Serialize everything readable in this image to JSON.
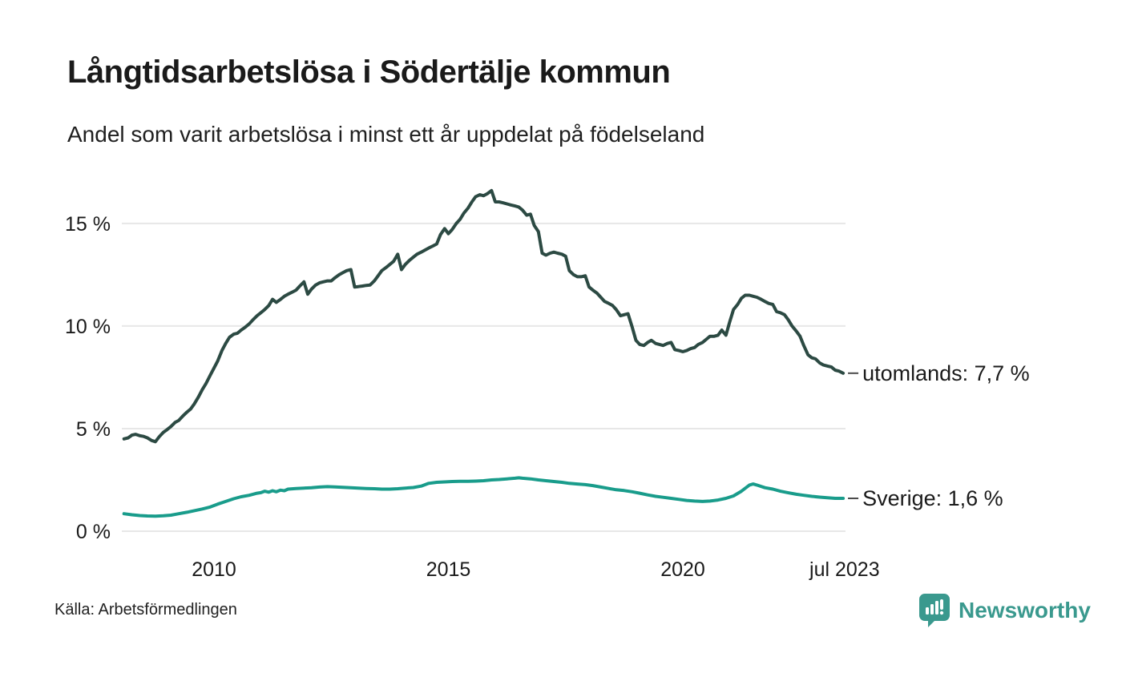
{
  "header": {
    "title": "Långtidsarbetslösa i Södertälje kommun",
    "subtitle": "Andel som varit arbetslösa i minst ett år uppdelat på födelseland"
  },
  "footer": {
    "source": "Källa: Arbetsförmedlingen",
    "brand": "Newsworthy"
  },
  "colors": {
    "utomlands_line": "#2c4a43",
    "sverige_line": "#199c8b",
    "gridline": "#e7e7e7",
    "text": "#1a1a1a",
    "leader_dash": "#4a4a4a",
    "brand_teal": "#3a998e"
  },
  "chart_data": {
    "type": "line",
    "title": "Långtidsarbetslösa i Södertälje kommun",
    "subtitle": "Andel som varit arbetslösa i minst ett år uppdelat på födelseland",
    "xlabel": "",
    "ylabel": "",
    "x_unit": "decimal_year",
    "y_unit": "percent",
    "ylim": [
      0,
      17.5
    ],
    "xlim": [
      2008.0,
      2023.6
    ],
    "grid": "horizontal",
    "legend_position": "line-end-labels",
    "y_ticks": [
      {
        "label": "0 %",
        "value": 0
      },
      {
        "label": "5 %",
        "value": 5
      },
      {
        "label": "10 %",
        "value": 10
      },
      {
        "label": "15 %",
        "value": 15
      }
    ],
    "x_ticks": [
      {
        "label": "2010",
        "value": 2010
      },
      {
        "label": "2015",
        "value": 2015
      },
      {
        "label": "2020",
        "value": 2020
      },
      {
        "label": "jul 2023",
        "value": 2023.45
      }
    ],
    "series": [
      {
        "name": "utomlands",
        "end_label": "utomlands: 7,7 %",
        "last_value_display": "7,7 %",
        "color": "#2c4a43",
        "points": [
          [
            2008.08,
            4.5
          ],
          [
            2008.17,
            4.55
          ],
          [
            2008.25,
            4.68
          ],
          [
            2008.33,
            4.72
          ],
          [
            2008.42,
            4.65
          ],
          [
            2008.5,
            4.62
          ],
          [
            2008.58,
            4.55
          ],
          [
            2008.67,
            4.42
          ],
          [
            2008.75,
            4.36
          ],
          [
            2008.83,
            4.6
          ],
          [
            2008.92,
            4.82
          ],
          [
            2009.0,
            4.95
          ],
          [
            2009.08,
            5.1
          ],
          [
            2009.17,
            5.3
          ],
          [
            2009.25,
            5.4
          ],
          [
            2009.33,
            5.6
          ],
          [
            2009.42,
            5.8
          ],
          [
            2009.5,
            5.95
          ],
          [
            2009.58,
            6.2
          ],
          [
            2009.67,
            6.55
          ],
          [
            2009.75,
            6.9
          ],
          [
            2009.83,
            7.2
          ],
          [
            2009.92,
            7.6
          ],
          [
            2010.0,
            7.95
          ],
          [
            2010.08,
            8.3
          ],
          [
            2010.17,
            8.8
          ],
          [
            2010.25,
            9.15
          ],
          [
            2010.33,
            9.45
          ],
          [
            2010.42,
            9.6
          ],
          [
            2010.5,
            9.65
          ],
          [
            2010.58,
            9.8
          ],
          [
            2010.67,
            9.95
          ],
          [
            2010.75,
            10.1
          ],
          [
            2010.83,
            10.3
          ],
          [
            2010.92,
            10.5
          ],
          [
            2011.0,
            10.65
          ],
          [
            2011.08,
            10.8
          ],
          [
            2011.17,
            11.0
          ],
          [
            2011.25,
            11.3
          ],
          [
            2011.33,
            11.15
          ],
          [
            2011.42,
            11.3
          ],
          [
            2011.5,
            11.45
          ],
          [
            2011.58,
            11.55
          ],
          [
            2011.67,
            11.65
          ],
          [
            2011.75,
            11.75
          ],
          [
            2011.83,
            11.95
          ],
          [
            2011.92,
            12.15
          ],
          [
            2012.0,
            11.55
          ],
          [
            2012.08,
            11.8
          ],
          [
            2012.17,
            12.0
          ],
          [
            2012.25,
            12.1
          ],
          [
            2012.33,
            12.15
          ],
          [
            2012.42,
            12.2
          ],
          [
            2012.5,
            12.2
          ],
          [
            2012.58,
            12.35
          ],
          [
            2012.67,
            12.5
          ],
          [
            2012.75,
            12.6
          ],
          [
            2012.83,
            12.7
          ],
          [
            2012.92,
            12.75
          ],
          [
            2013.0,
            11.9
          ],
          [
            2013.08,
            11.92
          ],
          [
            2013.17,
            11.95
          ],
          [
            2013.25,
            11.98
          ],
          [
            2013.33,
            12.0
          ],
          [
            2013.42,
            12.2
          ],
          [
            2013.5,
            12.45
          ],
          [
            2013.58,
            12.7
          ],
          [
            2013.67,
            12.85
          ],
          [
            2013.75,
            13.0
          ],
          [
            2013.83,
            13.15
          ],
          [
            2013.92,
            13.5
          ],
          [
            2014.0,
            12.75
          ],
          [
            2014.08,
            13.0
          ],
          [
            2014.17,
            13.2
          ],
          [
            2014.25,
            13.35
          ],
          [
            2014.33,
            13.5
          ],
          [
            2014.42,
            13.6
          ],
          [
            2014.5,
            13.7
          ],
          [
            2014.58,
            13.8
          ],
          [
            2014.67,
            13.9
          ],
          [
            2014.75,
            14.0
          ],
          [
            2014.83,
            14.45
          ],
          [
            2014.92,
            14.75
          ],
          [
            2015.0,
            14.5
          ],
          [
            2015.08,
            14.7
          ],
          [
            2015.17,
            15.0
          ],
          [
            2015.25,
            15.2
          ],
          [
            2015.33,
            15.5
          ],
          [
            2015.42,
            15.75
          ],
          [
            2015.5,
            16.05
          ],
          [
            2015.58,
            16.3
          ],
          [
            2015.67,
            16.4
          ],
          [
            2015.75,
            16.35
          ],
          [
            2015.83,
            16.45
          ],
          [
            2015.92,
            16.6
          ],
          [
            2016.0,
            16.05
          ],
          [
            2016.08,
            16.05
          ],
          [
            2016.17,
            16.0
          ],
          [
            2016.25,
            15.95
          ],
          [
            2016.33,
            15.9
          ],
          [
            2016.42,
            15.85
          ],
          [
            2016.5,
            15.8
          ],
          [
            2016.58,
            15.65
          ],
          [
            2016.67,
            15.4
          ],
          [
            2016.75,
            15.45
          ],
          [
            2016.83,
            14.9
          ],
          [
            2016.92,
            14.6
          ],
          [
            2017.0,
            13.55
          ],
          [
            2017.08,
            13.45
          ],
          [
            2017.17,
            13.55
          ],
          [
            2017.25,
            13.6
          ],
          [
            2017.33,
            13.55
          ],
          [
            2017.42,
            13.5
          ],
          [
            2017.5,
            13.4
          ],
          [
            2017.58,
            12.7
          ],
          [
            2017.67,
            12.5
          ],
          [
            2017.75,
            12.4
          ],
          [
            2017.83,
            12.4
          ],
          [
            2017.92,
            12.45
          ],
          [
            2018.0,
            11.9
          ],
          [
            2018.08,
            11.75
          ],
          [
            2018.17,
            11.6
          ],
          [
            2018.25,
            11.4
          ],
          [
            2018.33,
            11.2
          ],
          [
            2018.42,
            11.1
          ],
          [
            2018.5,
            11.0
          ],
          [
            2018.58,
            10.8
          ],
          [
            2018.67,
            10.5
          ],
          [
            2018.75,
            10.55
          ],
          [
            2018.83,
            10.6
          ],
          [
            2018.92,
            9.95
          ],
          [
            2019.0,
            9.3
          ],
          [
            2019.08,
            9.1
          ],
          [
            2019.17,
            9.05
          ],
          [
            2019.25,
            9.2
          ],
          [
            2019.33,
            9.3
          ],
          [
            2019.42,
            9.15
          ],
          [
            2019.5,
            9.1
          ],
          [
            2019.58,
            9.05
          ],
          [
            2019.67,
            9.15
          ],
          [
            2019.75,
            9.2
          ],
          [
            2019.83,
            8.85
          ],
          [
            2019.92,
            8.8
          ],
          [
            2020.0,
            8.75
          ],
          [
            2020.08,
            8.8
          ],
          [
            2020.17,
            8.9
          ],
          [
            2020.25,
            8.95
          ],
          [
            2020.33,
            9.1
          ],
          [
            2020.42,
            9.2
          ],
          [
            2020.5,
            9.35
          ],
          [
            2020.58,
            9.5
          ],
          [
            2020.67,
            9.5
          ],
          [
            2020.75,
            9.55
          ],
          [
            2020.83,
            9.8
          ],
          [
            2020.92,
            9.55
          ],
          [
            2021.0,
            10.2
          ],
          [
            2021.08,
            10.8
          ],
          [
            2021.17,
            11.05
          ],
          [
            2021.25,
            11.35
          ],
          [
            2021.33,
            11.5
          ],
          [
            2021.42,
            11.5
          ],
          [
            2021.5,
            11.45
          ],
          [
            2021.58,
            11.4
          ],
          [
            2021.67,
            11.3
          ],
          [
            2021.75,
            11.2
          ],
          [
            2021.83,
            11.1
          ],
          [
            2021.92,
            11.05
          ],
          [
            2022.0,
            10.7
          ],
          [
            2022.08,
            10.65
          ],
          [
            2022.17,
            10.55
          ],
          [
            2022.25,
            10.3
          ],
          [
            2022.33,
            10.0
          ],
          [
            2022.42,
            9.75
          ],
          [
            2022.5,
            9.5
          ],
          [
            2022.58,
            9.05
          ],
          [
            2022.67,
            8.6
          ],
          [
            2022.75,
            8.45
          ],
          [
            2022.83,
            8.4
          ],
          [
            2022.92,
            8.2
          ],
          [
            2023.0,
            8.1
          ],
          [
            2023.08,
            8.05
          ],
          [
            2023.17,
            8.0
          ],
          [
            2023.25,
            7.85
          ],
          [
            2023.33,
            7.8
          ],
          [
            2023.42,
            7.7
          ]
        ]
      },
      {
        "name": "Sverige",
        "end_label": "Sverige: 1,6 %",
        "last_value_display": "1,6 %",
        "color": "#199c8b",
        "points": [
          [
            2008.08,
            0.85
          ],
          [
            2008.25,
            0.8
          ],
          [
            2008.42,
            0.76
          ],
          [
            2008.58,
            0.74
          ],
          [
            2008.75,
            0.73
          ],
          [
            2008.92,
            0.75
          ],
          [
            2009.08,
            0.78
          ],
          [
            2009.25,
            0.85
          ],
          [
            2009.42,
            0.92
          ],
          [
            2009.58,
            1.0
          ],
          [
            2009.75,
            1.08
          ],
          [
            2009.92,
            1.18
          ],
          [
            2010.08,
            1.32
          ],
          [
            2010.25,
            1.45
          ],
          [
            2010.42,
            1.58
          ],
          [
            2010.58,
            1.68
          ],
          [
            2010.75,
            1.75
          ],
          [
            2010.92,
            1.85
          ],
          [
            2011.0,
            1.88
          ],
          [
            2011.08,
            1.95
          ],
          [
            2011.17,
            1.9
          ],
          [
            2011.25,
            1.97
          ],
          [
            2011.33,
            1.92
          ],
          [
            2011.42,
            2.0
          ],
          [
            2011.5,
            1.97
          ],
          [
            2011.58,
            2.05
          ],
          [
            2011.75,
            2.08
          ],
          [
            2011.92,
            2.1
          ],
          [
            2012.08,
            2.12
          ],
          [
            2012.25,
            2.15
          ],
          [
            2012.42,
            2.17
          ],
          [
            2012.58,
            2.16
          ],
          [
            2012.75,
            2.14
          ],
          [
            2012.92,
            2.12
          ],
          [
            2013.08,
            2.1
          ],
          [
            2013.25,
            2.08
          ],
          [
            2013.42,
            2.07
          ],
          [
            2013.58,
            2.05
          ],
          [
            2013.75,
            2.05
          ],
          [
            2013.92,
            2.07
          ],
          [
            2014.08,
            2.1
          ],
          [
            2014.25,
            2.13
          ],
          [
            2014.42,
            2.2
          ],
          [
            2014.58,
            2.33
          ],
          [
            2014.75,
            2.38
          ],
          [
            2014.92,
            2.4
          ],
          [
            2015.08,
            2.42
          ],
          [
            2015.25,
            2.43
          ],
          [
            2015.42,
            2.43
          ],
          [
            2015.58,
            2.44
          ],
          [
            2015.75,
            2.46
          ],
          [
            2015.92,
            2.5
          ],
          [
            2016.08,
            2.52
          ],
          [
            2016.25,
            2.55
          ],
          [
            2016.42,
            2.58
          ],
          [
            2016.5,
            2.6
          ],
          [
            2016.58,
            2.58
          ],
          [
            2016.75,
            2.55
          ],
          [
            2016.92,
            2.5
          ],
          [
            2017.08,
            2.46
          ],
          [
            2017.25,
            2.42
          ],
          [
            2017.42,
            2.38
          ],
          [
            2017.58,
            2.33
          ],
          [
            2017.75,
            2.3
          ],
          [
            2017.92,
            2.27
          ],
          [
            2018.08,
            2.22
          ],
          [
            2018.25,
            2.15
          ],
          [
            2018.42,
            2.08
          ],
          [
            2018.58,
            2.02
          ],
          [
            2018.75,
            1.98
          ],
          [
            2018.92,
            1.92
          ],
          [
            2019.08,
            1.85
          ],
          [
            2019.25,
            1.77
          ],
          [
            2019.42,
            1.7
          ],
          [
            2019.58,
            1.65
          ],
          [
            2019.75,
            1.6
          ],
          [
            2019.92,
            1.55
          ],
          [
            2020.08,
            1.5
          ],
          [
            2020.25,
            1.47
          ],
          [
            2020.42,
            1.45
          ],
          [
            2020.58,
            1.47
          ],
          [
            2020.75,
            1.52
          ],
          [
            2020.92,
            1.6
          ],
          [
            2021.08,
            1.72
          ],
          [
            2021.25,
            1.95
          ],
          [
            2021.42,
            2.25
          ],
          [
            2021.5,
            2.3
          ],
          [
            2021.58,
            2.25
          ],
          [
            2021.75,
            2.12
          ],
          [
            2021.92,
            2.05
          ],
          [
            2022.08,
            1.95
          ],
          [
            2022.25,
            1.87
          ],
          [
            2022.42,
            1.8
          ],
          [
            2022.58,
            1.75
          ],
          [
            2022.75,
            1.7
          ],
          [
            2022.92,
            1.66
          ],
          [
            2023.08,
            1.63
          ],
          [
            2023.25,
            1.6
          ],
          [
            2023.42,
            1.6
          ]
        ]
      }
    ]
  }
}
